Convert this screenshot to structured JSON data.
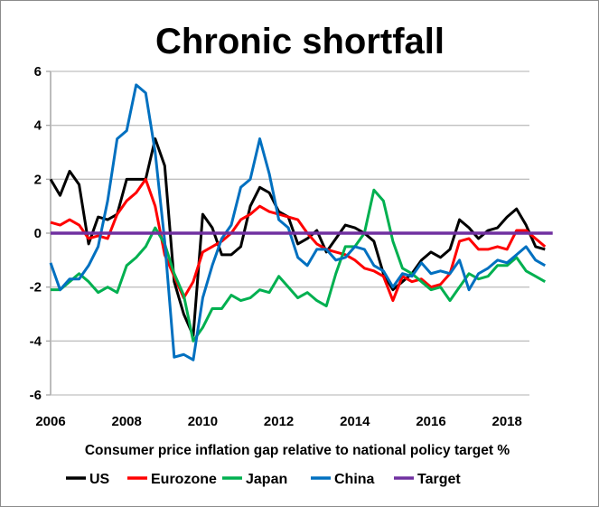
{
  "chart_data": {
    "type": "line",
    "title": "Chronic shortfall",
    "xlabel": "Consumer price inflation gap relative to national policy target %",
    "ylabel": "",
    "xlim": [
      2006,
      2019.3
    ],
    "ylim": [
      -6,
      6
    ],
    "xticks": [
      "2006",
      "2008",
      "2010",
      "2012",
      "2014",
      "2016",
      "2018"
    ],
    "yticks": [
      "6",
      "4",
      "2",
      "0",
      "-2",
      "-4",
      "-6"
    ],
    "grid": "horizontal",
    "legend_placement": "bottom",
    "x_start": 2006,
    "x_step": 0.25,
    "series": [
      {
        "name": "US",
        "color": "#000000",
        "values": [
          2.0,
          1.4,
          2.3,
          1.8,
          -0.4,
          0.6,
          0.5,
          0.7,
          2.0,
          2.0,
          2.0,
          3.5,
          2.5,
          -1.8,
          -3.0,
          -3.8,
          0.7,
          0.2,
          -0.8,
          -0.8,
          -0.5,
          1.0,
          1.7,
          1.5,
          0.8,
          0.6,
          -0.4,
          -0.2,
          0.1,
          -0.7,
          -0.2,
          0.3,
          0.2,
          0.0,
          -0.3,
          -1.5,
          -2.1,
          -1.8,
          -1.5,
          -1.0,
          -0.7,
          -0.9,
          -0.6,
          0.5,
          0.2,
          -0.2,
          0.1,
          0.2,
          0.6,
          0.9,
          0.3,
          -0.5,
          -0.6
        ]
      },
      {
        "name": "Eurozone",
        "color": "#ff0000",
        "values": [
          0.4,
          0.3,
          0.5,
          0.3,
          -0.2,
          -0.1,
          -0.2,
          0.7,
          1.2,
          1.5,
          2.0,
          1.0,
          -0.8,
          -1.6,
          -2.4,
          -1.8,
          -0.7,
          -0.5,
          -0.3,
          0.0,
          0.5,
          0.7,
          1.0,
          0.8,
          0.7,
          0.6,
          0.5,
          0.0,
          -0.4,
          -0.6,
          -0.7,
          -0.8,
          -1.0,
          -1.3,
          -1.4,
          -1.6,
          -2.5,
          -1.6,
          -1.8,
          -1.7,
          -2.0,
          -1.9,
          -1.5,
          -0.3,
          -0.2,
          -0.6,
          -0.6,
          -0.5,
          -0.6,
          0.1,
          0.1,
          -0.2,
          -0.5
        ]
      },
      {
        "name": "Japan",
        "color": "#00b050",
        "values": [
          -2.1,
          -2.1,
          -1.8,
          -1.5,
          -1.8,
          -2.2,
          -2.0,
          -2.2,
          -1.2,
          -0.9,
          -0.5,
          0.2,
          -0.4,
          -1.5,
          -2.3,
          -4.0,
          -3.5,
          -2.8,
          -2.8,
          -2.3,
          -2.5,
          -2.4,
          -2.1,
          -2.2,
          -1.6,
          -2.0,
          -2.4,
          -2.2,
          -2.5,
          -2.7,
          -1.5,
          -0.5,
          -0.5,
          0.0,
          1.6,
          1.2,
          -0.3,
          -1.3,
          -1.5,
          -1.8,
          -2.1,
          -2.0,
          -2.5,
          -2.0,
          -1.5,
          -1.7,
          -1.6,
          -1.2,
          -1.2,
          -0.9,
          -1.4,
          -1.6,
          -1.8
        ]
      },
      {
        "name": "China",
        "color": "#0070c0",
        "values": [
          -1.1,
          -2.1,
          -1.7,
          -1.7,
          -1.2,
          -0.5,
          1.2,
          3.5,
          3.8,
          5.5,
          5.2,
          3.0,
          -0.3,
          -4.6,
          -4.5,
          -4.7,
          -2.4,
          -1.2,
          -0.2,
          0.3,
          1.7,
          2.0,
          3.5,
          2.2,
          0.5,
          0.2,
          -0.9,
          -1.2,
          -0.6,
          -0.6,
          -1.0,
          -0.9,
          -0.5,
          -0.6,
          -1.2,
          -1.4,
          -2.0,
          -1.5,
          -1.6,
          -1.1,
          -1.5,
          -1.4,
          -1.5,
          -1.0,
          -2.1,
          -1.5,
          -1.3,
          -1.0,
          -1.1,
          -0.8,
          -0.5,
          -1.0,
          -1.2
        ]
      },
      {
        "name": "Target",
        "color": "#7030a0",
        "values": [
          0,
          0
        ]
      }
    ]
  }
}
